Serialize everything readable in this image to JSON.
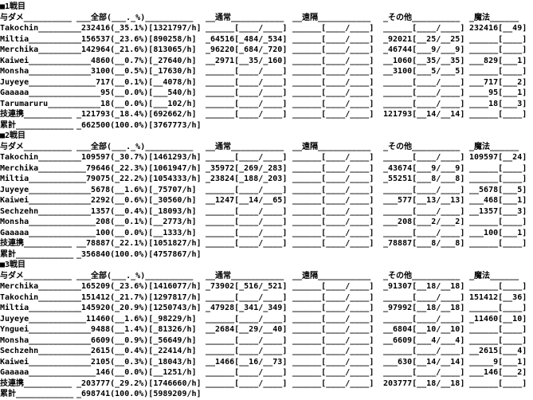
{
  "meta": {
    "background_color": "#ffffff",
    "text_color": "#000000",
    "description": "battle damage log text screen"
  },
  "labels": {
    "damage_dealt": "与ダメ",
    "all": "全部",
    "melee": "通常",
    "ranged": "遠隔",
    "other": "その他",
    "magic": "魔法",
    "skillchain": "技連携",
    "grand_total": "累計",
    "pct_header_placeholder": "___._",
    "percent_sign": "%",
    "per_hour_suffix": "/h",
    "pad_char": "_",
    "empty_cell": "______[____/____]",
    "empty_magic_cell": "______[____]"
  },
  "sections": [
    {
      "title": "■1戦目",
      "rows": [
        {
          "name": "Takochin",
          "total": 232416,
          "pct": "35.1",
          "per_hour": 1321797,
          "magic": {
            "dmg": 232416,
            "count": 49
          }
        },
        {
          "name": "Miltia",
          "total": 156537,
          "pct": "23.6",
          "per_hour": 890258,
          "melee": {
            "dmg": 64516,
            "hits": 484,
            "swings": 534
          },
          "other": {
            "dmg": 92021,
            "hits": 25,
            "swings": 25
          }
        },
        {
          "name": "Merchika",
          "total": 142964,
          "pct": "21.6",
          "per_hour": 813065,
          "melee": {
            "dmg": 96220,
            "hits": 684,
            "swings": 720
          },
          "other": {
            "dmg": 46744,
            "hits": 9,
            "swings": 9
          }
        },
        {
          "name": "Kaiwei",
          "total": 4860,
          "pct": "0.7",
          "per_hour": 27640,
          "melee": {
            "dmg": 2971,
            "hits": 35,
            "swings": 160
          },
          "other": {
            "dmg": 1060,
            "hits": 35,
            "swings": 35
          },
          "magic": {
            "dmg": 829,
            "count": 1
          }
        },
        {
          "name": "Monsha",
          "total": 3100,
          "pct": "0.5",
          "per_hour": 17630,
          "other": {
            "dmg": 3100,
            "hits": 5,
            "swings": 5
          }
        },
        {
          "name": "Juyeye",
          "total": 717,
          "pct": "0.1",
          "per_hour": 4078,
          "magic": {
            "dmg": 717,
            "count": 2
          }
        },
        {
          "name": "Gaaaaa",
          "total": 95,
          "pct": "0.0",
          "per_hour": 540,
          "magic": {
            "dmg": 95,
            "count": 1
          }
        },
        {
          "name": "Tarumaruru",
          "total": 18,
          "pct": "0.0",
          "per_hour": 102,
          "magic": {
            "dmg": 18,
            "count": 3
          }
        },
        {
          "name": "技連携",
          "row_type": "skillchain",
          "total": 121793,
          "pct": "18.4",
          "per_hour": 692662,
          "other": {
            "dmg": 121793,
            "hits": 14,
            "swings": 14
          }
        },
        {
          "name": "累計",
          "row_type": "grand_total",
          "total": 662500,
          "pct": "100.0",
          "per_hour": 3767773
        }
      ]
    },
    {
      "title": "■2戦目",
      "rows": [
        {
          "name": "Takochin",
          "total": 109597,
          "pct": "30.7",
          "per_hour": 1461293,
          "magic": {
            "dmg": 109597,
            "count": 24
          }
        },
        {
          "name": "Merchika",
          "total": 79646,
          "pct": "22.3",
          "per_hour": 1061947,
          "melee": {
            "dmg": 35972,
            "hits": 269,
            "swings": 283
          },
          "other": {
            "dmg": 43674,
            "hits": 9,
            "swings": 9
          }
        },
        {
          "name": "Miltia",
          "total": 79075,
          "pct": "22.2",
          "per_hour": 1054333,
          "melee": {
            "dmg": 23824,
            "hits": 188,
            "swings": 203
          },
          "other": {
            "dmg": 55251,
            "hits": 8,
            "swings": 8
          }
        },
        {
          "name": "Juyeye",
          "total": 5678,
          "pct": "1.6",
          "per_hour": 75707,
          "magic": {
            "dmg": 5678,
            "count": 5
          }
        },
        {
          "name": "Kaiwei",
          "total": 2292,
          "pct": "0.6",
          "per_hour": 30560,
          "melee": {
            "dmg": 1247,
            "hits": 14,
            "swings": 65
          },
          "other": {
            "dmg": 577,
            "hits": 13,
            "swings": 13
          },
          "magic": {
            "dmg": 468,
            "count": 1
          }
        },
        {
          "name": "Sechzehn",
          "total": 1357,
          "pct": "0.4",
          "per_hour": 18093,
          "magic": {
            "dmg": 1357,
            "count": 3
          }
        },
        {
          "name": "Monsha",
          "total": 208,
          "pct": "0.1",
          "per_hour": 2773,
          "other": {
            "dmg": 208,
            "hits": 2,
            "swings": 2
          }
        },
        {
          "name": "Gaaaaa",
          "total": 100,
          "pct": "0.0",
          "per_hour": 1333,
          "magic": {
            "dmg": 100,
            "count": 1
          }
        },
        {
          "name": "技連携",
          "row_type": "skillchain",
          "total": 78887,
          "pct": "22.1",
          "per_hour": 1051827,
          "other": {
            "dmg": 78887,
            "hits": 8,
            "swings": 8
          }
        },
        {
          "name": "累計",
          "row_type": "grand_total",
          "total": 356840,
          "pct": "100.0",
          "per_hour": 4757867
        }
      ]
    },
    {
      "title": "■3戦目",
      "rows": [
        {
          "name": "Merchika",
          "total": 165209,
          "pct": "23.6",
          "per_hour": 1416077,
          "melee": {
            "dmg": 73902,
            "hits": 516,
            "swings": 521
          },
          "other": {
            "dmg": 91307,
            "hits": 18,
            "swings": 18
          }
        },
        {
          "name": "Takochin",
          "total": 151412,
          "pct": "21.7",
          "per_hour": 1297817,
          "magic": {
            "dmg": 151412,
            "count": 36
          }
        },
        {
          "name": "Miltia",
          "total": 145920,
          "pct": "20.9",
          "per_hour": 1250743,
          "melee": {
            "dmg": 47928,
            "hits": 341,
            "swings": 349
          },
          "other": {
            "dmg": 97992,
            "hits": 18,
            "swings": 18
          }
        },
        {
          "name": "Juyeye",
          "total": 11460,
          "pct": "1.6",
          "per_hour": 98229,
          "magic": {
            "dmg": 11460,
            "count": 10
          }
        },
        {
          "name": "Ynguei",
          "total": 9488,
          "pct": "1.4",
          "per_hour": 81326,
          "melee": {
            "dmg": 2684,
            "hits": 29,
            "swings": 40
          },
          "other": {
            "dmg": 6804,
            "hits": 10,
            "swings": 10
          }
        },
        {
          "name": "Monsha",
          "total": 6609,
          "pct": "0.9",
          "per_hour": 56649,
          "other": {
            "dmg": 6609,
            "hits": 4,
            "swings": 4
          }
        },
        {
          "name": "Sechzehn",
          "total": 2615,
          "pct": "0.4",
          "per_hour": 22414,
          "magic": {
            "dmg": 2615,
            "count": 4
          }
        },
        {
          "name": "Kaiwei",
          "total": 2105,
          "pct": "0.3",
          "per_hour": 18043,
          "melee": {
            "dmg": 1466,
            "hits": 16,
            "swings": 73
          },
          "other": {
            "dmg": 630,
            "hits": 14,
            "swings": 14
          },
          "magic": {
            "dmg": 9,
            "count": 1
          }
        },
        {
          "name": "Gaaaaa",
          "total": 146,
          "pct": "0.0",
          "per_hour": 1251,
          "magic": {
            "dmg": 146,
            "count": 2
          }
        },
        {
          "name": "技連携",
          "row_type": "skillchain",
          "total": 203777,
          "pct": "29.2",
          "per_hour": 1746660,
          "other": {
            "dmg": 203777,
            "hits": 18,
            "swings": 18
          }
        },
        {
          "name": "累計",
          "row_type": "grand_total",
          "total": 698741,
          "pct": "100.0",
          "per_hour": 5989209
        }
      ]
    }
  ]
}
